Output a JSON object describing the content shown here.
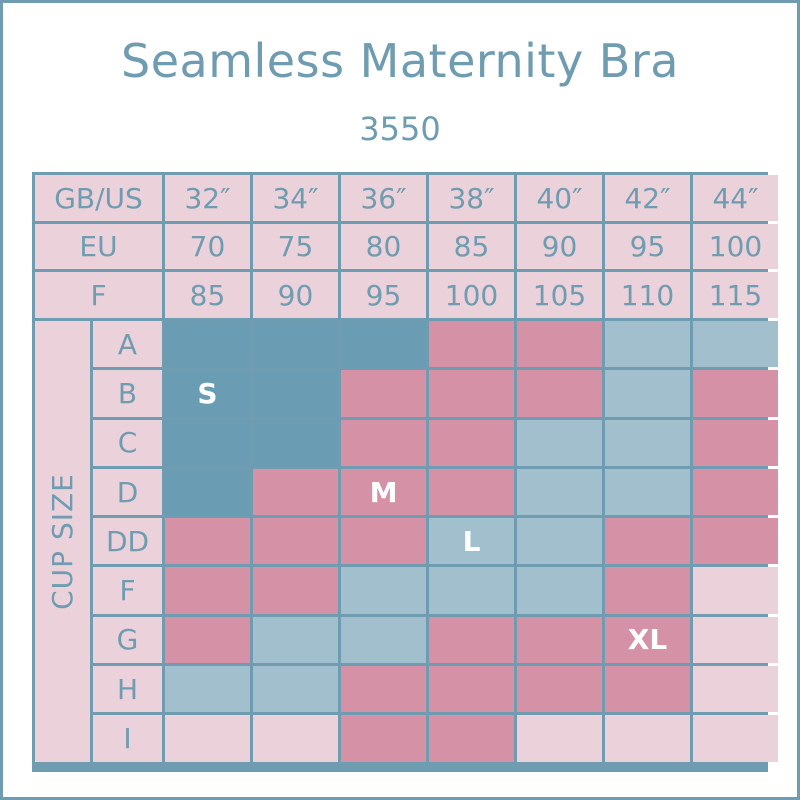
{
  "title": "Seamless Maternity Bra",
  "subtitle": "3550",
  "table": {
    "header_rows": [
      {
        "label": "GB/US",
        "values": [
          "32″",
          "34″",
          "36″",
          "38″",
          "40″",
          "42″",
          "44″"
        ]
      },
      {
        "label": "EU",
        "values": [
          "70",
          "75",
          "80",
          "85",
          "90",
          "95",
          "100"
        ]
      },
      {
        "label": "F",
        "values": [
          "85",
          "90",
          "95",
          "100",
          "105",
          "110",
          "115"
        ]
      }
    ],
    "cup_axis_label": "CUP SIZE",
    "cups": [
      "A",
      "B",
      "C",
      "D",
      "DD",
      "F",
      "G",
      "H",
      "I"
    ],
    "grid": [
      [
        "S",
        "S",
        "S",
        "M",
        "M",
        "L",
        "L"
      ],
      [
        "S",
        "S",
        "M",
        "M",
        "M",
        "L",
        "M"
      ],
      [
        "S",
        "S",
        "M",
        "M",
        "L",
        "L",
        "M"
      ],
      [
        "S",
        "M",
        "M",
        "M",
        "L",
        "L",
        "M"
      ],
      [
        "M",
        "M",
        "M",
        "L",
        "L",
        "XL",
        "XL"
      ],
      [
        "M",
        "M",
        "L",
        "L",
        "L",
        "XL",
        "none"
      ],
      [
        "M",
        "L",
        "L",
        "XL",
        "XL",
        "XL",
        "none"
      ],
      [
        "L",
        "L",
        "XL",
        "XL",
        "XL",
        "XL",
        "none"
      ],
      [
        "none",
        "none",
        "XL",
        "XL",
        "none",
        "none",
        "none"
      ]
    ],
    "size_labels": [
      {
        "text": "S",
        "row": 1,
        "col": 0
      },
      {
        "text": "M",
        "row": 3,
        "col": 2
      },
      {
        "text": "L",
        "row": 4,
        "col": 3
      },
      {
        "text": "XL",
        "row": 6,
        "col": 5
      }
    ]
  },
  "colors": {
    "accent_text": "#6f9cb0",
    "S": "#6a9db3",
    "M": "#d592a6",
    "L": "#a1bfcc",
    "XL": "#d592a6",
    "empty": "#ead1da"
  }
}
